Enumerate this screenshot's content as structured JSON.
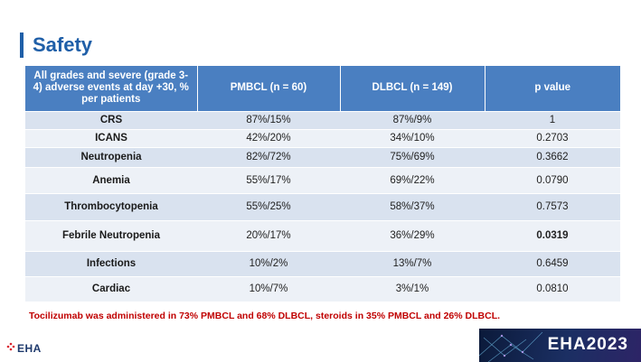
{
  "title": "Safety",
  "table": {
    "headers": [
      "All grades and severe (grade 3-4) adverse events at day +30, % per patients",
      "PMBCL (n = 60)",
      "DLBCL (n = 149)",
      "p value"
    ],
    "rows": [
      {
        "event": "CRS",
        "pmbcl": "87%/15%",
        "dlbcl": "87%/9%",
        "p": "1"
      },
      {
        "event": "ICANS",
        "pmbcl": "42%/20%",
        "dlbcl": "34%/10%",
        "p": "0.2703"
      },
      {
        "event": "Neutropenia",
        "pmbcl": "82%/72%",
        "dlbcl": "75%/69%",
        "p": "0.3662"
      },
      {
        "event": "Anemia",
        "pmbcl": "55%/17%",
        "dlbcl": "69%/22%",
        "p": "0.0790"
      },
      {
        "event": "Thrombocytopenia",
        "pmbcl": "55%/25%",
        "dlbcl": "58%/37%",
        "p": "0.7573"
      },
      {
        "event": "Febrile Neutropenia",
        "pmbcl": "20%/17%",
        "dlbcl": "36%/29%",
        "p": "0.0319"
      },
      {
        "event": "Infections",
        "pmbcl": "10%/2%",
        "dlbcl": "13%/7%",
        "p": "0.6459"
      },
      {
        "event": "Cardiac",
        "pmbcl": "10%/7%",
        "dlbcl": "3%/1%",
        "p": "0.0810"
      }
    ]
  },
  "footnote": "Tocilizumab was administered in 73% PMBCL and 68% DLBCL, steroids in 35% PMBCL and 26% DLBCL.",
  "logo_text": "EHA",
  "banner_text": "EHA2023",
  "colors": {
    "title": "#1f5fa8",
    "header_bg": "#4a7fc1",
    "row_odd": "#d9e2ef",
    "row_even": "#edf1f7",
    "footnote": "#c00000"
  }
}
